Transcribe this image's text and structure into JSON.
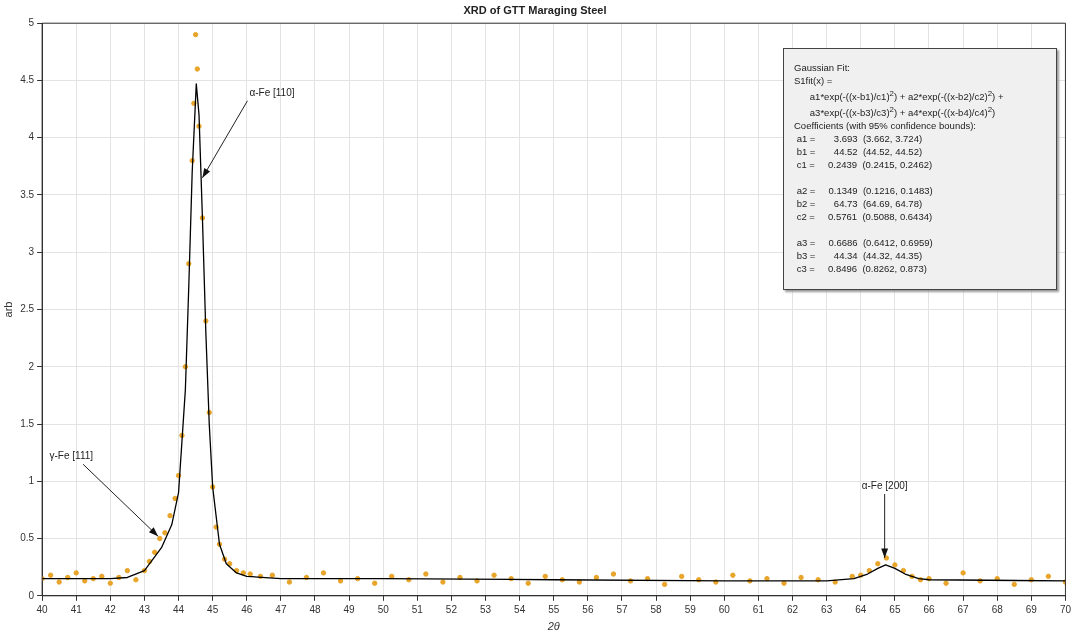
{
  "chart_data": {
    "type": "scatter",
    "title": "XRD of GTT Maraging Steel",
    "xlabel": "2θ",
    "ylabel": "arb",
    "xlim": [
      40,
      70
    ],
    "xticks": [
      40,
      41,
      42,
      43,
      44,
      45,
      46,
      47,
      48,
      49,
      50,
      51,
      52,
      53,
      54,
      55,
      56,
      57,
      58,
      59,
      60,
      61,
      62,
      63,
      64,
      65,
      66,
      67,
      68,
      69,
      70
    ],
    "ylim": [
      0,
      5
    ],
    "yticks": [
      0,
      0.5,
      1,
      1.5,
      2,
      2.5,
      3,
      3.5,
      4,
      4.5,
      5
    ],
    "grid": true,
    "legend": false,
    "series": [
      {
        "color": "#e8a52a",
        "marker": "circle",
        "x": [
          40,
          40.25,
          40.5,
          40.75,
          41,
          41.25,
          41.5,
          41.75,
          42,
          42.25,
          42.5,
          42.75,
          43,
          43.15,
          43.3,
          43.45,
          43.6,
          43.75,
          43.9,
          44,
          44.1,
          44.2,
          44.3,
          44.4,
          44.45,
          44.5,
          44.55,
          44.6,
          44.7,
          44.8,
          44.9,
          45,
          45.1,
          45.2,
          45.35,
          45.5,
          45.7,
          45.9,
          46.1,
          46.4,
          46.75,
          47.25,
          47.75,
          48.25,
          48.75,
          49.25,
          49.75,
          50.25,
          50.75,
          51.25,
          51.75,
          52.25,
          52.75,
          53.25,
          53.75,
          54.25,
          54.75,
          55.25,
          55.75,
          56.25,
          56.75,
          57.25,
          57.75,
          58.25,
          58.75,
          59.25,
          59.75,
          60.25,
          60.75,
          61.25,
          61.75,
          62.25,
          62.75,
          63.25,
          63.75,
          64,
          64.25,
          64.5,
          64.75,
          65,
          65.25,
          65.5,
          65.75,
          66,
          66.5,
          67,
          67.5,
          68,
          68.5,
          69,
          69.5,
          70
        ],
        "values": [
          0.15,
          0.18,
          0.12,
          0.16,
          0.2,
          0.13,
          0.15,
          0.17,
          0.11,
          0.16,
          0.22,
          0.14,
          0.22,
          0.3,
          0.38,
          0.5,
          0.55,
          0.7,
          0.85,
          1.05,
          1.4,
          2,
          2.9,
          3.8,
          4.3,
          4.9,
          4.6,
          4.1,
          3.3,
          2.4,
          1.6,
          0.95,
          0.6,
          0.45,
          0.32,
          0.28,
          0.22,
          0.2,
          0.19,
          0.17,
          0.18,
          0.12,
          0.16,
          0.2,
          0.13,
          0.15,
          0.11,
          0.17,
          0.14,
          0.19,
          0.12,
          0.16,
          0.13,
          0.18,
          0.15,
          0.11,
          0.17,
          0.14,
          0.12,
          0.16,
          0.19,
          0.13,
          0.15,
          0.1,
          0.17,
          0.14,
          0.12,
          0.18,
          0.13,
          0.15,
          0.11,
          0.16,
          0.14,
          0.12,
          0.17,
          0.18,
          0.22,
          0.28,
          0.33,
          0.27,
          0.22,
          0.17,
          0.14,
          0.15,
          0.11,
          0.2,
          0.13,
          0.15,
          0.1,
          0.14,
          0.17,
          0.12
        ]
      },
      {
        "type": "line",
        "color": "#000000",
        "marker": "none",
        "line_style": "solid",
        "x": [
          40,
          42,
          42.5,
          43,
          43.5,
          43.8,
          44,
          44.2,
          44.3,
          44.4,
          44.52,
          44.6,
          44.7,
          44.8,
          44.9,
          45,
          45.2,
          45.4,
          45.7,
          46,
          47,
          50,
          55,
          60,
          63,
          63.8,
          64.2,
          64.5,
          64.73,
          65,
          65.3,
          65.7,
          66,
          70
        ],
        "values": [
          0.15,
          0.15,
          0.16,
          0.22,
          0.42,
          0.62,
          0.9,
          1.8,
          2.7,
          3.7,
          4.47,
          4.2,
          3.3,
          2.3,
          1.5,
          0.95,
          0.45,
          0.28,
          0.2,
          0.17,
          0.15,
          0.15,
          0.14,
          0.13,
          0.13,
          0.15,
          0.19,
          0.24,
          0.27,
          0.24,
          0.19,
          0.15,
          0.14,
          0.13
        ]
      }
    ],
    "annotations": [
      {
        "text": "α-Fe [110]",
        "x": 44.7,
        "y": 3.65
      },
      {
        "text": "γ-Fe [111]",
        "x": 43.4,
        "y": 0.52
      },
      {
        "text": "α-Fe [200]",
        "x": 64.7,
        "y": 0.33
      },
      "Gaussian Fit:",
      "S1fit(x) =",
      "      a1*exp(-((x-b1)/c1)$^{2}$) + a2*exp(-((x-b2)/c2)$^{2}$) +",
      "      a3*exp(-((x-b3)/c3)$^{2}$) + a4*exp(-((x-b4)/c4)$^{2}$)",
      "Coefficients (with 95% confidence bounds):",
      " a1 =       3.693  (3.662, 3.724)",
      " b1 =       44.52  (44.52, 44.52)",
      " c1 =     0.2439  (0.2415, 0.2462)",
      " a2 =     0.1349  (0.1216, 0.1483)",
      " b2 =       64.73  (64.69, 64.78)",
      " c2 =     0.5761  (0.5088, 0.6434)",
      " a3 =     0.6686  (0.6412, 0.6959)",
      " b3 =       44.34  (44.32, 44.35)",
      " c3 =     0.8496  (0.8262, 0.873)"
    ]
  }
}
